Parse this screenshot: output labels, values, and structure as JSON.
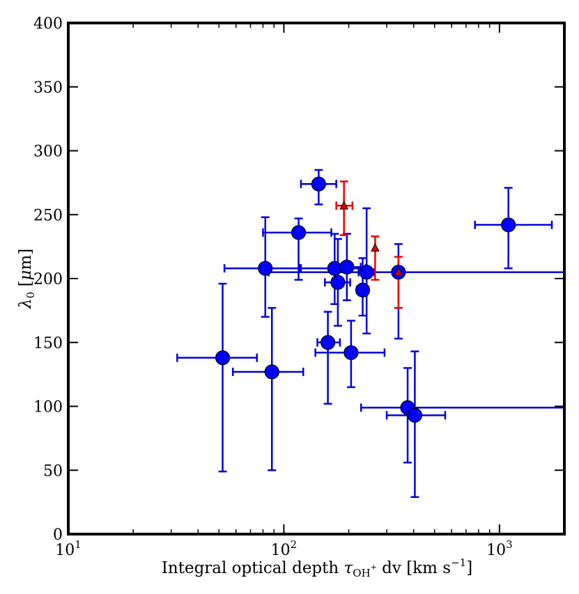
{
  "chart_data": {
    "type": "scatter",
    "x_scale": "log",
    "xlim": [
      10,
      2000
    ],
    "ylim": [
      0,
      400
    ],
    "xlabel_parts": {
      "pre": "Integral optical depth ",
      "tau": "τ",
      "sub": "OH",
      "subsup": "+",
      "mid": " dv [km s",
      "exp": "−1",
      "post": "]"
    },
    "ylabel_parts": {
      "lambda": "λ",
      "sub": "0",
      "mid": " [",
      "mu": "μ",
      "post": "m]"
    },
    "x_ticks": [
      {
        "value": 10,
        "base": "10",
        "exp": "1"
      },
      {
        "value": 100,
        "base": "10",
        "exp": "2"
      },
      {
        "value": 1000,
        "base": "10",
        "exp": "3"
      }
    ],
    "y_ticks": [
      {
        "value": 0,
        "label": "0"
      },
      {
        "value": 50,
        "label": "50"
      },
      {
        "value": 100,
        "label": "100"
      },
      {
        "value": 150,
        "label": "150"
      },
      {
        "value": 200,
        "label": "200"
      },
      {
        "value": 250,
        "label": "250"
      },
      {
        "value": 300,
        "label": "300"
      },
      {
        "value": 350,
        "label": "350"
      },
      {
        "value": 400,
        "label": "400"
      }
    ],
    "series": [
      {
        "name": "circles",
        "marker": "circle",
        "color": "#0000ff",
        "errorbar_color": "#0000dd",
        "points": [
          {
            "x": 52,
            "y": 138,
            "xerr": [
              32,
              75
            ],
            "yerr": [
              49,
              196
            ]
          },
          {
            "x": 88,
            "y": 127,
            "xerr": [
              58,
              123
            ],
            "yerr": [
              50,
              177
            ]
          },
          {
            "x": 82,
            "y": 208,
            "xerr": [
              53,
              120
            ],
            "yerr": [
              170,
              248
            ]
          },
          {
            "x": 117,
            "y": 236,
            "xerr": [
              80,
              166
            ],
            "yerr": [
              199,
              247
            ]
          },
          {
            "x": 145,
            "y": 274,
            "xerr": [
              120,
              175
            ],
            "yerr": [
              258,
              285
            ]
          },
          {
            "x": 160,
            "y": 150,
            "xerr": [
              143,
              182
            ],
            "yerr": [
              102,
              174
            ]
          },
          {
            "x": 172,
            "y": 208,
            "xerr": [
              118,
              240
            ],
            "yerr": [
              180,
              235
            ]
          },
          {
            "x": 178,
            "y": 197,
            "xerr": [
              155,
              203
            ],
            "yerr": [
              163,
              231
            ]
          },
          {
            "x": 196,
            "y": 209,
            "xerr": [
              170,
              227
            ],
            "yerr": [
              183,
              235
            ]
          },
          {
            "x": 205,
            "y": 142,
            "xerr": [
              140,
              293
            ],
            "yerr": [
              115,
              167
            ]
          },
          {
            "x": 232,
            "y": 191,
            "xerr": [
              218,
              247
            ],
            "yerr": [
              171,
              216
            ]
          },
          {
            "x": 242,
            "y": 205,
            "xerr": [
              222,
              263
            ],
            "yerr": [
              157,
              255
            ]
          },
          {
            "x": 340,
            "y": 205,
            "xerr": [
              85,
              2000
            ],
            "yerr": [
              153,
              227
            ]
          },
          {
            "x": 375,
            "y": 99,
            "xerr": [
              228,
              2000
            ],
            "yerr": [
              56,
              130
            ]
          },
          {
            "x": 405,
            "y": 93,
            "xerr": [
              300,
              560
            ],
            "yerr": [
              29,
              143
            ]
          },
          {
            "x": 1100,
            "y": 242,
            "xerr": [
              770,
              1750
            ],
            "yerr": [
              208,
              271
            ]
          }
        ]
      },
      {
        "name": "triangles",
        "marker": "triangle",
        "color": "#dd0000",
        "errorbar_color": "#ee0000",
        "points": [
          {
            "x": 190,
            "y": 257,
            "xerr": [
              175,
              208
            ],
            "yerr": [
              234,
              276
            ]
          },
          {
            "x": 265,
            "y": 224,
            "xerr": null,
            "yerr": [
              199,
              233
            ]
          },
          {
            "x": 340,
            "y": 205,
            "xerr": null,
            "yerr": [
              177,
              217
            ]
          }
        ]
      }
    ]
  }
}
